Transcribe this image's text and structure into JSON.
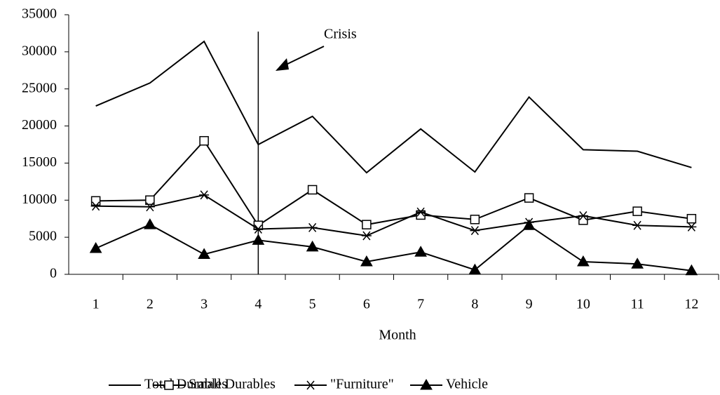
{
  "chart_data": {
    "type": "line",
    "x_label": "Month",
    "categories": [
      "1",
      "2",
      "3",
      "4",
      "5",
      "6",
      "7",
      "8",
      "9",
      "10",
      "11",
      "12"
    ],
    "ylim": [
      0,
      35000
    ],
    "yticks": [
      0,
      5000,
      10000,
      15000,
      20000,
      25000,
      30000,
      35000
    ],
    "annotations": [
      {
        "text": "Crisis",
        "x": "4"
      }
    ],
    "legend": "bottom",
    "series": [
      {
        "name": "Total Durables",
        "color": "#000000",
        "marker": "none",
        "values": [
          22700,
          25800,
          31400,
          17500,
          21300,
          13700,
          19600,
          13800,
          23900,
          16800,
          16600,
          14400
        ]
      },
      {
        "name": "Small Durables",
        "color": "#000000",
        "marker": "square",
        "values": [
          9900,
          10000,
          18000,
          6600,
          11400,
          6700,
          8000,
          7400,
          10300,
          7300,
          8500,
          7500
        ]
      },
      {
        "name": "\"Furniture\"",
        "color": "#000000",
        "marker": "star",
        "values": [
          9200,
          9100,
          10700,
          6100,
          6300,
          5200,
          8400,
          5900,
          7000,
          7900,
          6600,
          6400
        ]
      },
      {
        "name": "Vehicle",
        "color": "#000000",
        "marker": "triangle",
        "values": [
          3500,
          6700,
          2700,
          4600,
          3700,
          1700,
          3000,
          600,
          6600,
          1700,
          1400,
          500
        ]
      }
    ]
  }
}
